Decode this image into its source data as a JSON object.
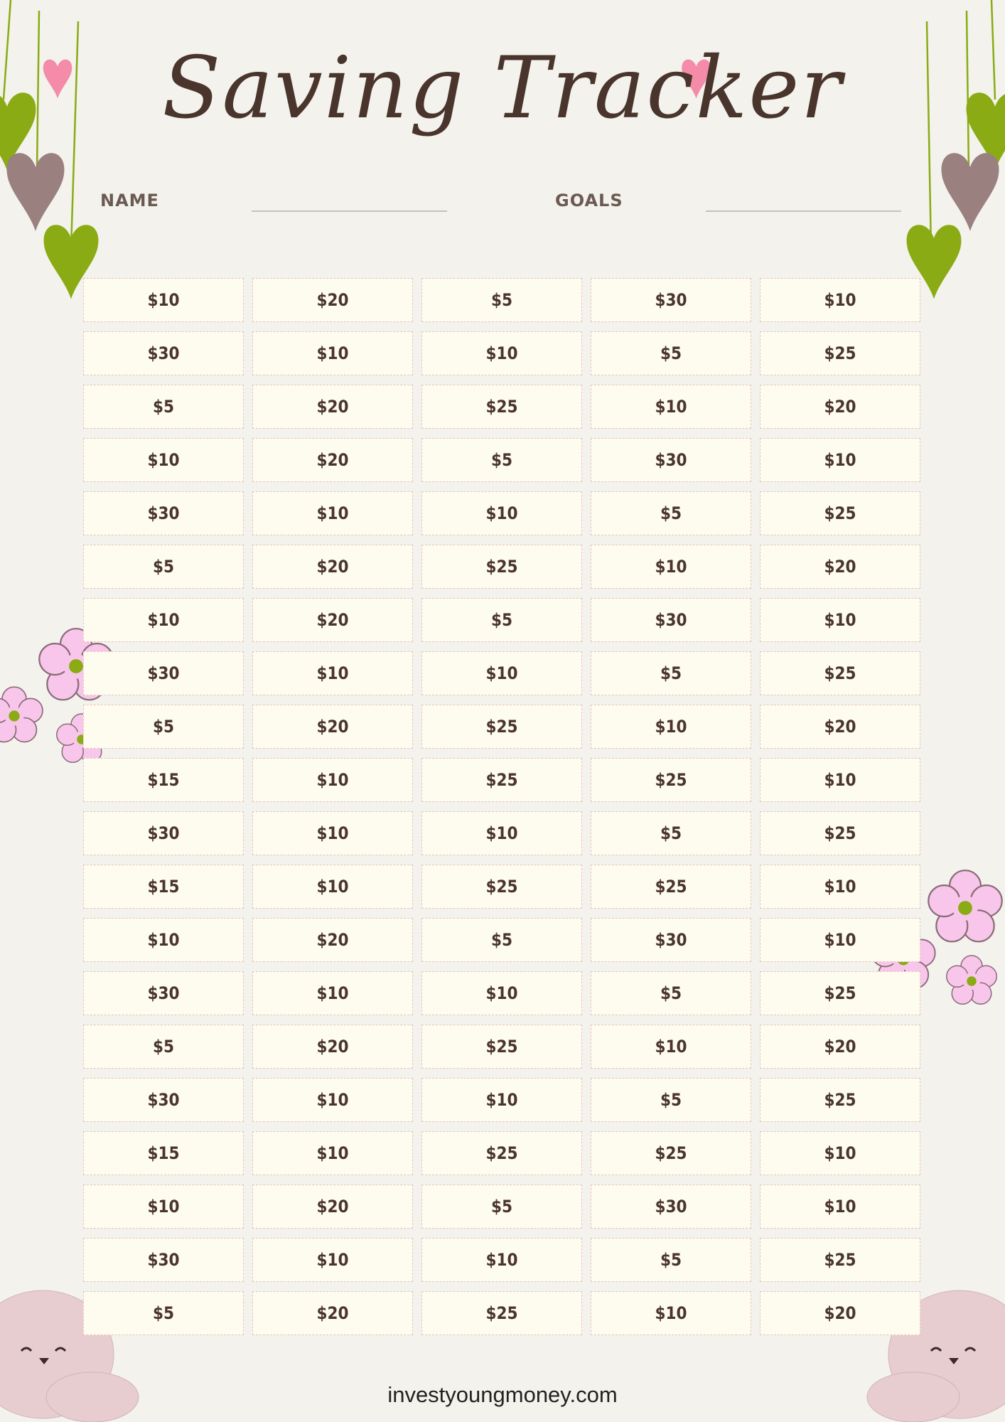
{
  "title": "Saving Tracker",
  "form": {
    "name_label": "NAME",
    "goals_label": "GOALS"
  },
  "colors": {
    "text": "#4a352d",
    "cell_bg": "#fefbef",
    "cell_border": "#e4c4c0",
    "background": "#f3f2ed",
    "heart_green": "#8aab13",
    "heart_pink": "#f48ba8",
    "heart_mauve": "#9b8080",
    "flower_pink": "#f8c6ea"
  },
  "grid": [
    [
      "$10",
      "$20",
      "$5",
      "$30",
      "$10"
    ],
    [
      "$30",
      "$10",
      "$10",
      "$5",
      "$25"
    ],
    [
      "$5",
      "$20",
      "$25",
      "$10",
      "$20"
    ],
    [
      "$10",
      "$20",
      "$5",
      "$30",
      "$10"
    ],
    [
      "$30",
      "$10",
      "$10",
      "$5",
      "$25"
    ],
    [
      "$5",
      "$20",
      "$25",
      "$10",
      "$20"
    ],
    [
      "$10",
      "$20",
      "$5",
      "$30",
      "$10"
    ],
    [
      "$30",
      "$10",
      "$10",
      "$5",
      "$25"
    ],
    [
      "$5",
      "$20",
      "$25",
      "$10",
      "$20"
    ],
    [
      "$15",
      "$10",
      "$25",
      "$25",
      "$10"
    ],
    [
      "$30",
      "$10",
      "$10",
      "$5",
      "$25"
    ],
    [
      "$15",
      "$10",
      "$25",
      "$25",
      "$10"
    ],
    [
      "$10",
      "$20",
      "$5",
      "$30",
      "$10"
    ],
    [
      "$30",
      "$10",
      "$10",
      "$5",
      "$25"
    ],
    [
      "$5",
      "$20",
      "$25",
      "$10",
      "$20"
    ],
    [
      "$30",
      "$10",
      "$10",
      "$5",
      "$25"
    ],
    [
      "$15",
      "$10",
      "$25",
      "$25",
      "$10"
    ],
    [
      "$10",
      "$20",
      "$5",
      "$30",
      "$10"
    ],
    [
      "$30",
      "$10",
      "$10",
      "$5",
      "$25"
    ],
    [
      "$5",
      "$20",
      "$25",
      "$10",
      "$20"
    ]
  ],
  "footer": "investyoungmoney.com",
  "decorations": [
    "hanging-heart-icon",
    "flower-icon",
    "bear-icon"
  ]
}
